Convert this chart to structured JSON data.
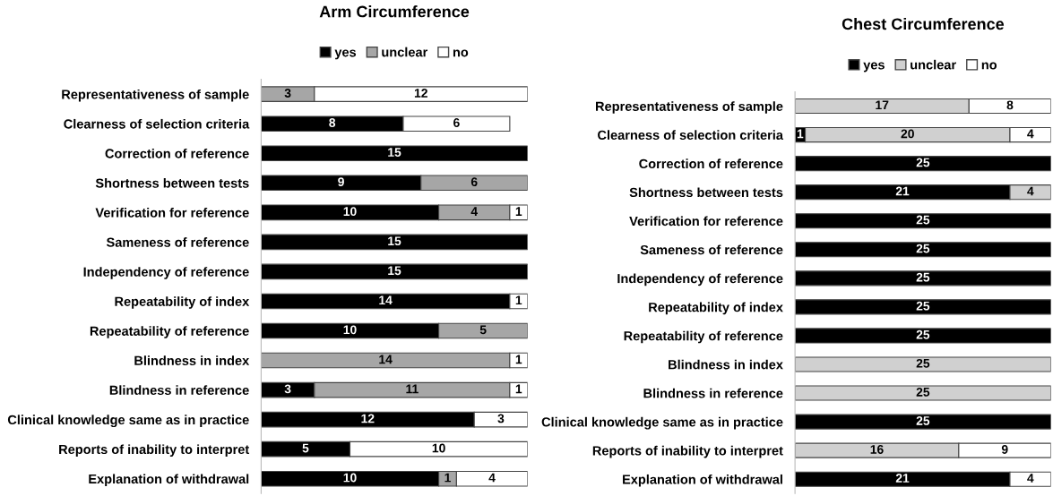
{
  "chart_data": [
    {
      "type": "bar",
      "orientation": "horizontal",
      "stacked": true,
      "title": "Arm Circumference",
      "legend": "top",
      "data_labels": true,
      "tick_labels": "y",
      "grid": false,
      "categories": [
        "Representativeness of sample",
        "Clearness of selection criteria",
        "Correction of reference",
        "Shortness between tests",
        "Verification for reference",
        "Sameness of reference",
        "Independency of reference",
        "Repeatability of index",
        "Repeatability of reference",
        "Blindness in index",
        "Blindness in reference",
        "Clinical knowledge same as in practice",
        "Reports of inability to interpret",
        "Explanation of withdrawal"
      ],
      "series": [
        {
          "name": "yes",
          "color": "#000000",
          "values": [
            null,
            8,
            15,
            9,
            10,
            15,
            15,
            14,
            10,
            null,
            3,
            12,
            5,
            10
          ]
        },
        {
          "name": "unclear",
          "color": "#a6a6a6",
          "values": [
            3,
            null,
            null,
            6,
            4,
            null,
            null,
            null,
            5,
            14,
            11,
            null,
            null,
            1
          ]
        },
        {
          "name": "no",
          "color": "#ffffff",
          "values": [
            12,
            6,
            null,
            null,
            1,
            null,
            null,
            1,
            null,
            1,
            1,
            3,
            10,
            4
          ]
        }
      ]
    },
    {
      "type": "bar",
      "orientation": "horizontal",
      "stacked": true,
      "title": "Chest Circumference",
      "legend": "top",
      "data_labels": true,
      "tick_labels": "y",
      "grid": false,
      "categories": [
        "Representativeness of sample",
        "Clearness of selection criteria",
        "Correction of reference",
        "Shortness between tests",
        "Verification for reference",
        "Sameness of reference",
        "Independency of reference",
        "Repeatability of index",
        "Repeatability of reference",
        "Blindness in index",
        "Blindness in reference",
        "Clinical knowledge same as in practice",
        "Reports of inability to interpret",
        "Explanation of withdrawal"
      ],
      "series": [
        {
          "name": "yes",
          "color": "#000000",
          "values": [
            null,
            1,
            25,
            21,
            25,
            25,
            25,
            25,
            25,
            null,
            null,
            25,
            null,
            21
          ]
        },
        {
          "name": "unclear",
          "color": "#d0d0d0",
          "values": [
            17,
            20,
            null,
            4,
            null,
            null,
            null,
            null,
            null,
            25,
            25,
            null,
            16,
            null
          ]
        },
        {
          "name": "no",
          "color": "#ffffff",
          "values": [
            8,
            4,
            null,
            null,
            null,
            null,
            null,
            null,
            null,
            null,
            null,
            null,
            9,
            4
          ]
        }
      ]
    }
  ]
}
